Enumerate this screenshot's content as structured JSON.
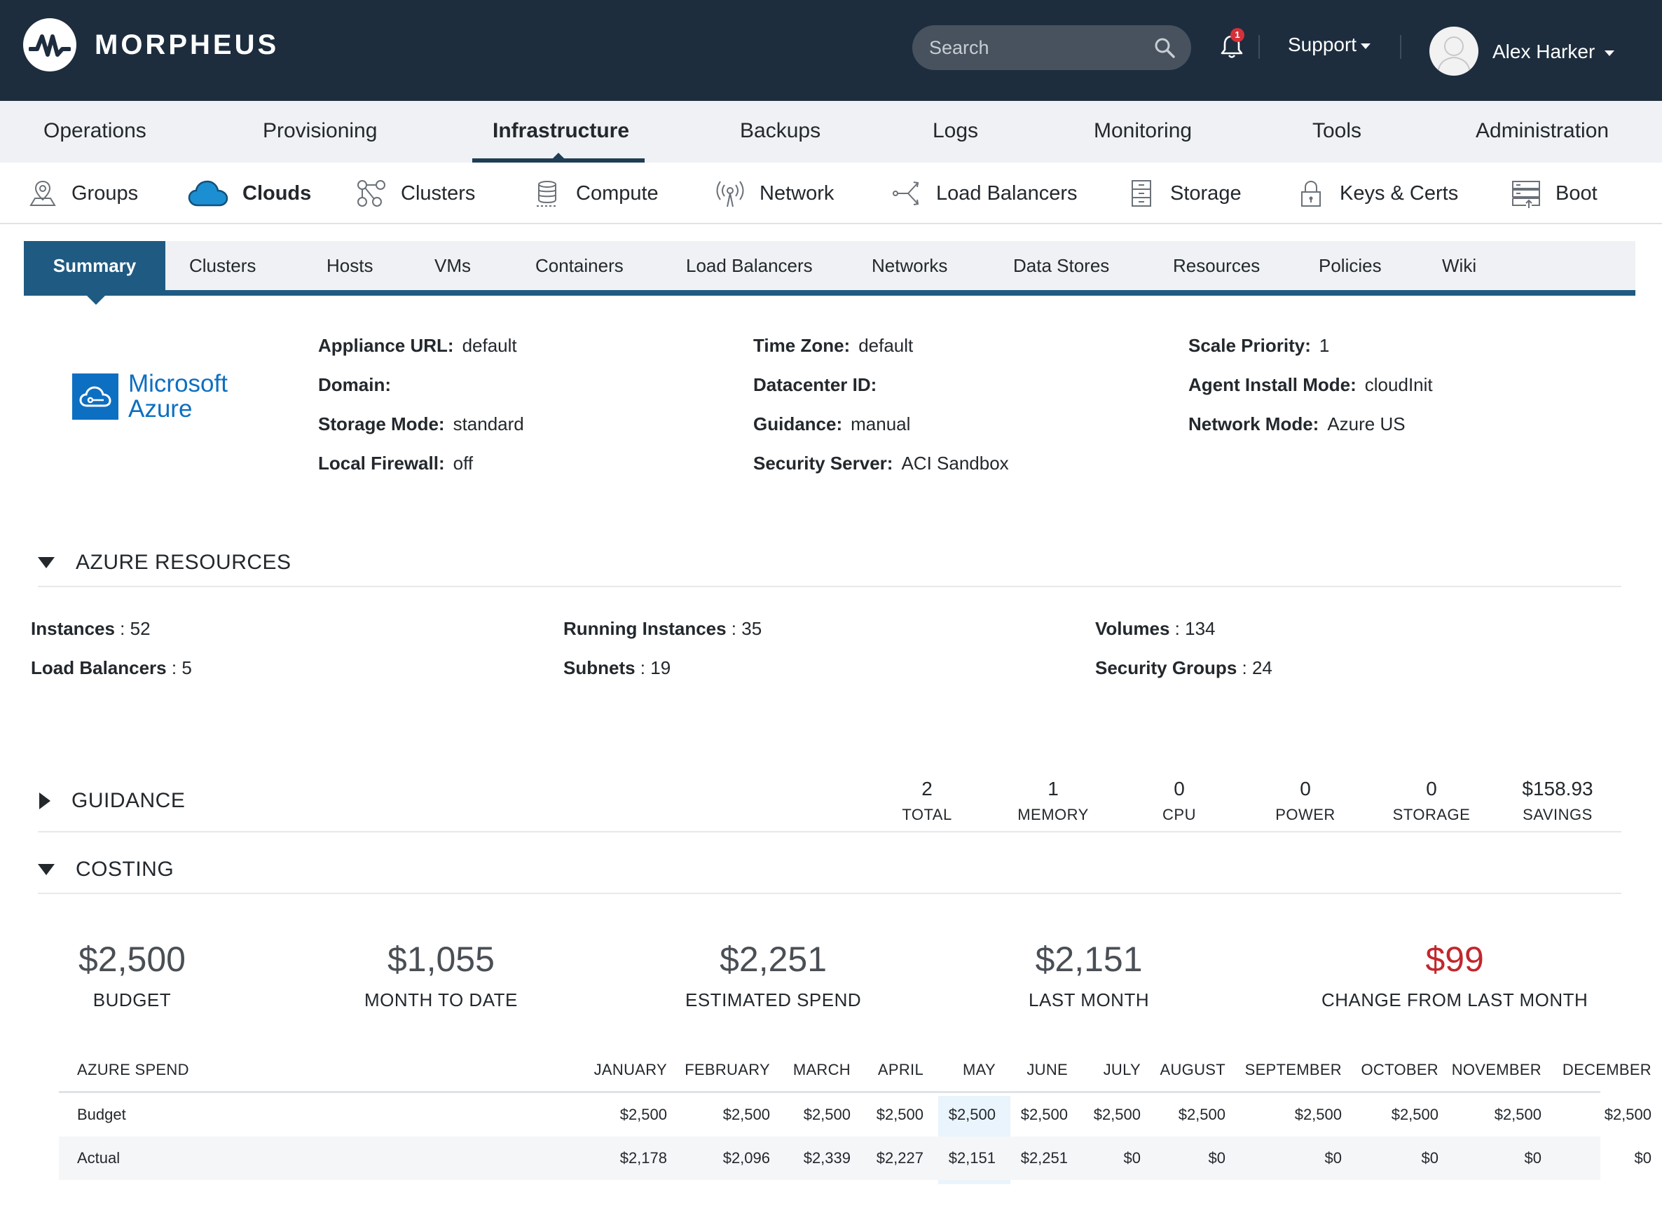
{
  "app": {
    "brand": "MORPHEUS",
    "search_placeholder": "Search",
    "notifications_count": "1",
    "support_label": "Support",
    "user_name": "Alex Harker"
  },
  "main_nav": [
    "Operations",
    "Provisioning",
    "Infrastructure",
    "Backups",
    "Logs",
    "Monitoring",
    "Tools",
    "Administration"
  ],
  "main_nav_active": "Infrastructure",
  "sub_nav": [
    "Groups",
    "Clouds",
    "Clusters",
    "Compute",
    "Network",
    "Load Balancers",
    "Storage",
    "Keys & Certs",
    "Boot"
  ],
  "sub_nav_active": "Clouds",
  "tabs": [
    "Summary",
    "Clusters",
    "Hosts",
    "VMs",
    "Containers",
    "Load Balancers",
    "Networks",
    "Data Stores",
    "Resources",
    "Policies",
    "Wiki"
  ],
  "tabs_active": "Summary",
  "cloud_logo": {
    "line1": "Microsoft",
    "line2": "Azure"
  },
  "details": {
    "col1": [
      {
        "label": "Appliance URL:",
        "value": "default"
      },
      {
        "label": "Domain:",
        "value": ""
      },
      {
        "label": "Storage Mode:",
        "value": "standard"
      },
      {
        "label": "Local Firewall:",
        "value": "off"
      }
    ],
    "col2": [
      {
        "label": "Time Zone:",
        "value": "default"
      },
      {
        "label": "Datacenter ID:",
        "value": ""
      },
      {
        "label": "Guidance:",
        "value": "manual"
      },
      {
        "label": "Security Server:",
        "value": "ACI Sandbox"
      }
    ],
    "col3": [
      {
        "label": "Scale Priority:",
        "value": "1"
      },
      {
        "label": "Agent Install Mode:",
        "value": "cloudInit"
      },
      {
        "label": "Network Mode:",
        "value": "Azure US"
      }
    ]
  },
  "azure_resources": {
    "title": "AZURE RESOURCES",
    "items": [
      {
        "label": "Instances",
        "value": "52"
      },
      {
        "label": "Load Balancers",
        "value": "5"
      },
      {
        "label": "Running Instances",
        "value": "35"
      },
      {
        "label": "Subnets",
        "value": "19"
      },
      {
        "label": "Volumes",
        "value": "134"
      },
      {
        "label": "Security Groups",
        "value": "24"
      }
    ]
  },
  "guidance": {
    "title": "GUIDANCE",
    "stats": [
      {
        "value": "2",
        "label": "TOTAL"
      },
      {
        "value": "1",
        "label": "MEMORY"
      },
      {
        "value": "0",
        "label": "CPU"
      },
      {
        "value": "0",
        "label": "POWER"
      },
      {
        "value": "0",
        "label": "STORAGE"
      },
      {
        "value": "$158.93",
        "label": "SAVINGS"
      }
    ]
  },
  "costing": {
    "title": "COSTING",
    "summary": [
      {
        "value": "$2,500",
        "label": "BUDGET"
      },
      {
        "value": "$1,055",
        "label": "MONTH TO DATE"
      },
      {
        "value": "$2,251",
        "label": "ESTIMATED SPEND"
      },
      {
        "value": "$2,151",
        "label": "LAST MONTH"
      },
      {
        "value": "$99",
        "label": "CHANGE FROM LAST MONTH"
      }
    ],
    "change_color": "#c1272d",
    "table": {
      "title": "AZURE SPEND",
      "months": [
        "JANUARY",
        "FEBRUARY",
        "MARCH",
        "APRIL",
        "MAY",
        "JUNE",
        "JULY",
        "AUGUST",
        "SEPTEMBER",
        "OCTOBER",
        "NOVEMBER",
        "DECEMBER"
      ],
      "highlight_month": "JUNE",
      "rows": [
        {
          "label": "Budget",
          "values": [
            "$2,500",
            "$2,500",
            "$2,500",
            "$2,500",
            "$2,500",
            "$2,500",
            "$2,500",
            "$2,500",
            "$2,500",
            "$2,500",
            "$2,500",
            "$2,500"
          ]
        },
        {
          "label": "Actual",
          "values": [
            "$2,178",
            "$2,096",
            "$2,339",
            "$2,227",
            "$2,151",
            "$2,251",
            "$0",
            "$0",
            "$0",
            "$0",
            "$0",
            "$0"
          ]
        }
      ]
    }
  },
  "colors": {
    "header_bg": "#1d2d3e",
    "accent": "#1f5a82",
    "azure_blue": "#0d6fc1"
  }
}
